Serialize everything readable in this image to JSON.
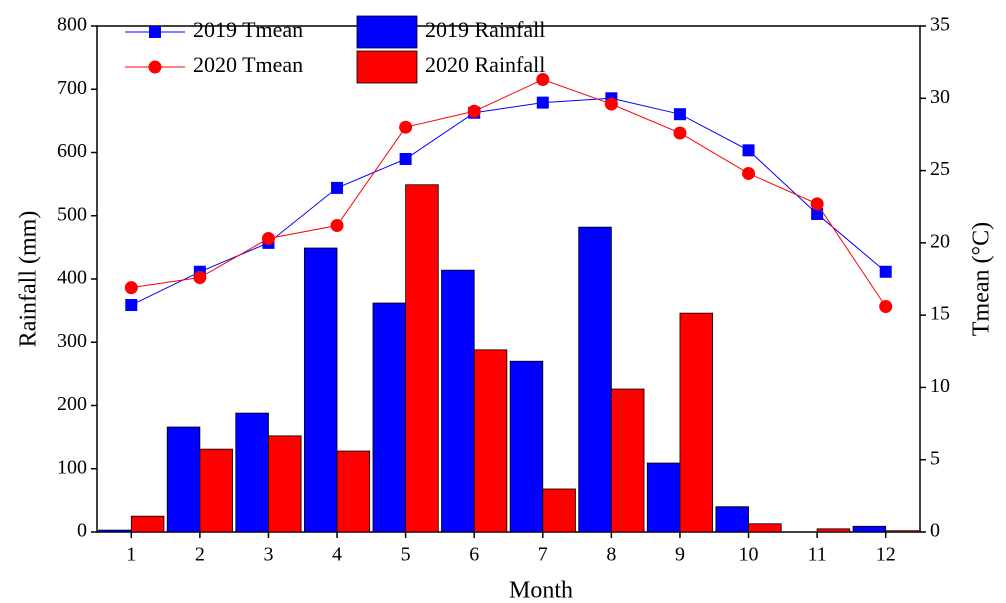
{
  "chart_data": {
    "type": "combo",
    "x_label": "Month",
    "y_label": "Rainfall (mm)",
    "y2_label": "Tmean (°C)",
    "categories": [
      "1",
      "2",
      "3",
      "4",
      "5",
      "6",
      "7",
      "8",
      "9",
      "10",
      "11",
      "12"
    ],
    "series": [
      {
        "name": "2019 Rainfall",
        "type": "bar",
        "color": "#0000ff",
        "values": [
          3,
          166,
          188,
          449,
          362,
          414,
          270,
          482,
          109,
          40,
          0,
          9
        ]
      },
      {
        "name": "2020 Rainfall",
        "type": "bar",
        "color": "#ff0000",
        "values": [
          25,
          131,
          152,
          128,
          549,
          288,
          68,
          226,
          346,
          13,
          5,
          2
        ]
      },
      {
        "name": "2019 Tmean",
        "type": "line",
        "marker": "square",
        "axis": "y2",
        "color": "#0000ff",
        "values": [
          15.7,
          18.0,
          20.0,
          23.8,
          25.8,
          29.0,
          29.7,
          30.0,
          28.9,
          26.4,
          22.0,
          18.0
        ]
      },
      {
        "name": "2020 Tmean",
        "type": "line",
        "marker": "circle",
        "axis": "y2",
        "color": "#ff0000",
        "values": [
          16.9,
          17.6,
          20.3,
          21.2,
          28.0,
          29.1,
          31.3,
          29.6,
          27.6,
          24.8,
          22.7,
          15.6
        ]
      }
    ],
    "ylim": [
      0,
      800
    ],
    "yticks": [
      0,
      100,
      200,
      300,
      400,
      500,
      600,
      700,
      800
    ],
    "y2lim": [
      0,
      35
    ],
    "y2ticks": [
      0,
      5,
      10,
      15,
      20,
      25,
      30,
      35
    ],
    "legend": "top-left",
    "grid": false
  }
}
